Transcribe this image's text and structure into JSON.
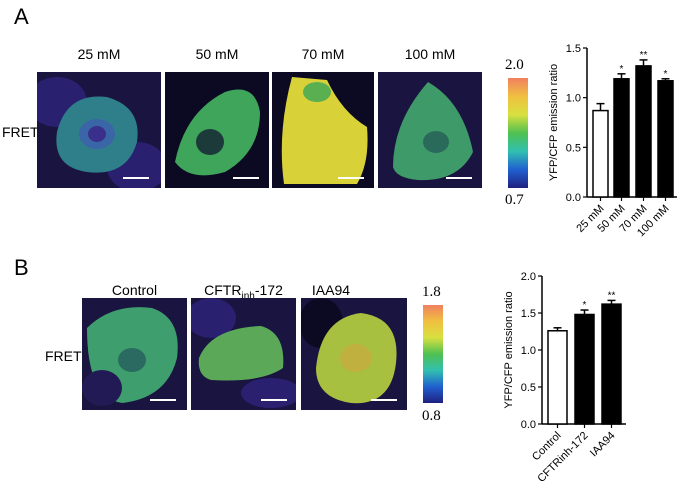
{
  "panel_a": {
    "letter": "A",
    "row_label": "FRET",
    "conditions": [
      "25 mM",
      "50 mM",
      "70 mM",
      "100 mM"
    ],
    "colorbar": {
      "max": "2.0",
      "min": "0.7"
    }
  },
  "panel_b": {
    "letter": "B",
    "row_label": "FRET",
    "conditions": [
      "Control",
      "CFTRinh-172",
      "IAA94"
    ],
    "condition_b_parts": {
      "main": "CFTR",
      "sub": "inh",
      "suffix": "-172"
    },
    "colorbar": {
      "max": "1.8",
      "min": "0.8"
    }
  },
  "chart_data": [
    {
      "type": "bar",
      "ylabel": "YFP/CFP emission ratio",
      "categories": [
        "25 mM",
        "50 mM",
        "70 mM",
        "100 mM"
      ],
      "values": [
        0.87,
        1.19,
        1.32,
        1.17
      ],
      "errors": [
        0.07,
        0.05,
        0.06,
        0.02
      ],
      "significance": [
        "",
        "*",
        "**",
        "*"
      ],
      "bar_colors": [
        "#ffffff",
        "#000000",
        "#000000",
        "#000000"
      ],
      "ylim": [
        0,
        1.5
      ],
      "yticks": [
        "0.0",
        "0.5",
        "1.0",
        "1.5"
      ],
      "grid": false
    },
    {
      "type": "bar",
      "ylabel": "YFP/CFP emission ratio",
      "categories": [
        "Control",
        "CFTRinh-172",
        "IAA94"
      ],
      "values": [
        1.26,
        1.48,
        1.62
      ],
      "errors": [
        0.04,
        0.06,
        0.05
      ],
      "significance": [
        "",
        "*",
        "**"
      ],
      "bar_colors": [
        "#ffffff",
        "#000000",
        "#000000"
      ],
      "ylim": [
        0,
        2.0
      ],
      "yticks": [
        "0.0",
        "0.5",
        "1.0",
        "1.5",
        "2.0"
      ],
      "grid": false
    }
  ]
}
